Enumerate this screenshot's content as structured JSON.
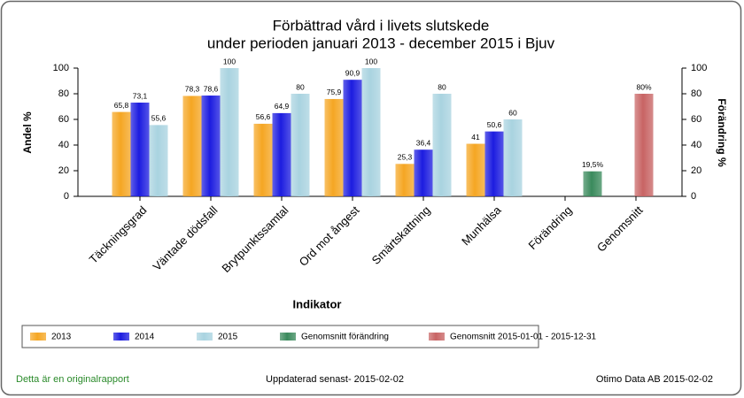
{
  "chart_data": {
    "type": "bar",
    "title": "Förbättrad vård i livets slutskede",
    "subtitle": "under perioden januari 2013 - december 2015 i  Bjuv",
    "x_label": "Indikator",
    "y_label": "Andel %",
    "y2_label": "Förändring %",
    "categories": [
      "Täckningsgrad",
      "Väntade dödsfall",
      "Brytpunktssamtal",
      "Ord mot ångest",
      "Smärtskattning",
      "Munhälsa",
      "Förändring",
      "Genomsnitt"
    ],
    "series": [
      {
        "name": "2013",
        "color": "#f5a623",
        "values": [
          65.8,
          78.3,
          56.6,
          75.9,
          25.3,
          41,
          null,
          null
        ],
        "value_labels": [
          "65,8",
          "78,3",
          "56,6",
          "75,9",
          "25,3",
          "41",
          null,
          null
        ]
      },
      {
        "name": "2014",
        "color": "#1c1ce0",
        "values": [
          73.1,
          78.6,
          64.9,
          90.9,
          36.4,
          50.6,
          null,
          null
        ],
        "value_labels": [
          "73,1",
          "78,6",
          "64,9",
          "90,9",
          "36,4",
          "50,6",
          null,
          null
        ]
      },
      {
        "name": "2015",
        "color": "#a9d3e0",
        "values": [
          55.6,
          100,
          80,
          100,
          80,
          60,
          null,
          null
        ],
        "value_labels": [
          "55,6",
          "100",
          "80",
          "100",
          "80",
          "60",
          null,
          null
        ]
      },
      {
        "name": "Genomsnitt förändring",
        "color": "#3a8a5c",
        "axis": "y2",
        "values": [
          null,
          null,
          null,
          null,
          null,
          null,
          19.5,
          null
        ],
        "value_labels": [
          null,
          null,
          null,
          null,
          null,
          null,
          "19,5%",
          null
        ]
      },
      {
        "name": "Genomsnitt 2015-01-01 - 2015-12-31",
        "color": "#c86464",
        "axis": "y2",
        "values": [
          null,
          null,
          null,
          null,
          null,
          null,
          null,
          80
        ],
        "value_labels": [
          null,
          null,
          null,
          null,
          null,
          null,
          null,
          "80%"
        ]
      }
    ],
    "ylim": [
      0,
      100
    ],
    "yticks": [
      0,
      20,
      40,
      60,
      80,
      100
    ],
    "y2lim": [
      0,
      100
    ],
    "y2ticks": [
      0,
      20,
      40,
      60,
      80,
      100
    ],
    "legend": "bottom"
  },
  "footer": {
    "left": "Detta är en originalrapport",
    "center": "Uppdaterad senast- 2015-02-02",
    "right": "Otimo Data AB 2015-02-02"
  }
}
